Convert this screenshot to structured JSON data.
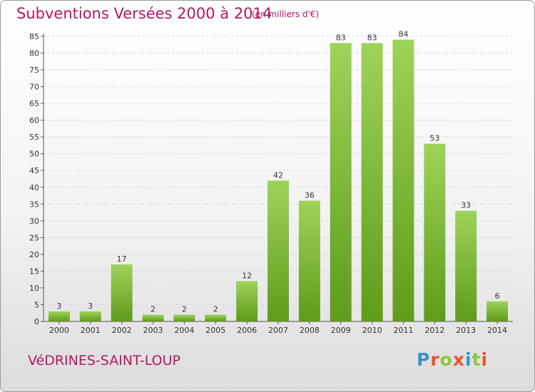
{
  "title": "Subventions Versées 2000 à 2014",
  "subtitle": "(en milliers d'€)",
  "commune": "VéDRINES-SAINT-LOUP",
  "logo": {
    "letters": [
      "P",
      "r",
      "o",
      "x",
      "i",
      "t",
      "i"
    ],
    "colors": [
      "#3a8fd1",
      "#e8552a",
      "#8cc83c",
      "#e8552a",
      "#3a8fd1",
      "#8cc83c",
      "#e8552a"
    ]
  },
  "colors": {
    "bar_top": "#9ed35a",
    "bar_bottom": "#5e9c1a",
    "title": "#b5175f"
  },
  "chart_data": {
    "type": "bar",
    "categories": [
      "2000",
      "2001",
      "2002",
      "2003",
      "2004",
      "2005",
      "2006",
      "2007",
      "2008",
      "2009",
      "2010",
      "2011",
      "2012",
      "2013",
      "2014"
    ],
    "values": [
      3,
      3,
      17,
      2,
      2,
      2,
      12,
      42,
      36,
      83,
      83,
      84,
      53,
      33,
      6
    ],
    "ylim": [
      0,
      85
    ],
    "yticks": [
      0,
      5,
      10,
      15,
      20,
      25,
      30,
      35,
      40,
      45,
      50,
      55,
      60,
      65,
      70,
      75,
      80,
      85
    ],
    "grid": true
  }
}
